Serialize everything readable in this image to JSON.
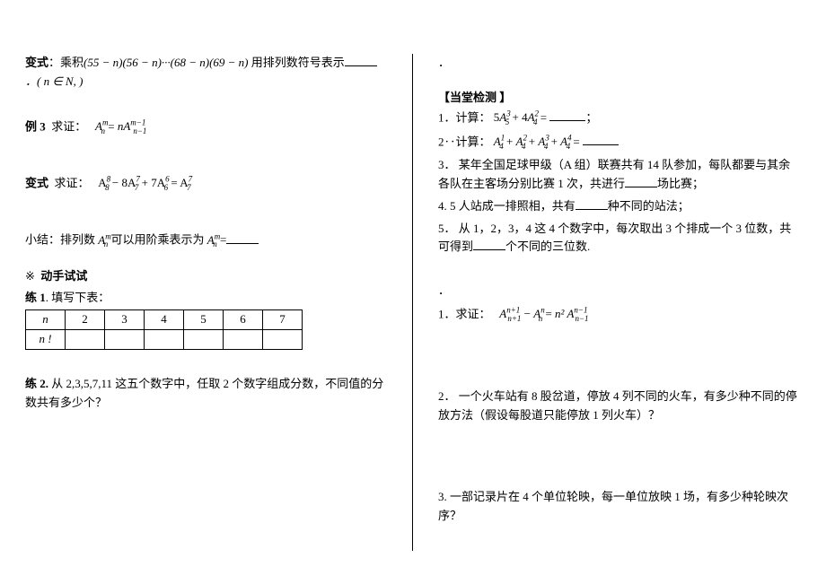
{
  "left": {
    "bianshi1": {
      "label": "变式",
      "text_before": "：乘积",
      "expr": "(55 − n)(56 − n)···(68 − n)(69 − n)",
      "text_after": " 用排列数符号表示",
      "note": "．( n ∈ N, )"
    },
    "li3": {
      "label": "例 3",
      "text": "求证：",
      "expr_lhs": "A",
      "expr_sub1": "n",
      "expr_sup1": "m",
      "eq": " = ",
      "expr_rhs_coef": "nA",
      "expr_sub2": "n−1",
      "expr_sup2": "m−1"
    },
    "bianshi2": {
      "label": "变式",
      "text": "求证：",
      "expr": "A₈⁸ − 8A₇⁷ + 7A₆⁶ = A₇⁷"
    },
    "xiaojie": {
      "text_before": "小结：排列数 ",
      "sym": "A",
      "sub": "n",
      "sup": "m",
      "text_mid": " 可以用阶乘表示为 ",
      "sym2": "A",
      "sub2": "n",
      "sup2": "m",
      "eq": " ="
    },
    "shishi": {
      "mark": "※",
      "title": "动手试试"
    },
    "lian1": {
      "label": "练 1",
      "text": ". 填写下表：",
      "table": {
        "row1": [
          "n",
          "2",
          "3",
          "4",
          "5",
          "6",
          "7"
        ],
        "row2": [
          "n !",
          "",
          "",
          "",
          "",
          "",
          ""
        ]
      }
    },
    "lian2": {
      "label": "练 2.",
      "text": "    从 2,3,5,7,11 这五个数字中，任取 2 个数字组成分数，不同值的分数共有多少个？"
    }
  },
  "right": {
    "dot": "．",
    "jiance": {
      "title": "【当堂检测 】",
      "q1": {
        "num": "1．",
        "text": "计算：",
        "expr": "5A₅³ + 4A₄²",
        "eq": " = ",
        "tail": "；"
      },
      "q2": {
        "num": "2‥",
        "text": "计算：",
        "expr": "A₄¹ + A₄² + A₄³ + A₄⁴",
        "eq": " = ",
        "tail": ""
      },
      "q3": {
        "num": "3．",
        "text": "  某年全国足球甲级（A 组）联赛共有 14 队参加，每队都要与其余各队在主客场分别比赛 1 次，共进行",
        "tail": "场比赛；"
      },
      "q4": {
        "num": "4. ",
        "text": "5 人站成一排照相，共有",
        "tail": "种不同的站法；"
      },
      "q5": {
        "num": "5．",
        "text": "  从 1，2，3，4 这 4 个数字中，每次取出 3 个排成一个 3 位数，共可得到",
        "tail": "个不同的三位数."
      }
    },
    "dot2": "．",
    "qiuzheng": {
      "num": "1．",
      "text": "求证：",
      "lhs1_sym": "A",
      "lhs1_sub": "n+1",
      "lhs1_sup": "n+1",
      "minus": " − ",
      "lhs2_sym": "A",
      "lhs2_sub": "n",
      "lhs2_sup": "n",
      "eq": " = ",
      "rhs_coef": "n²",
      "rhs_sym": "A",
      "rhs_sub": "n−1",
      "rhs_sup": "n−1"
    },
    "q_train": {
      "num": "2．",
      "text": "    一个火车站有 8 股岔道，停放 4 列不同的火车，有多少种不同的停放方法（假设每股道只能停放 1 列火车）？"
    },
    "q_film": {
      "num": "3. ",
      "text": "一部记录片在 4 个单位轮映，每一单位放映 1 场，有多少种轮映次序？"
    }
  }
}
